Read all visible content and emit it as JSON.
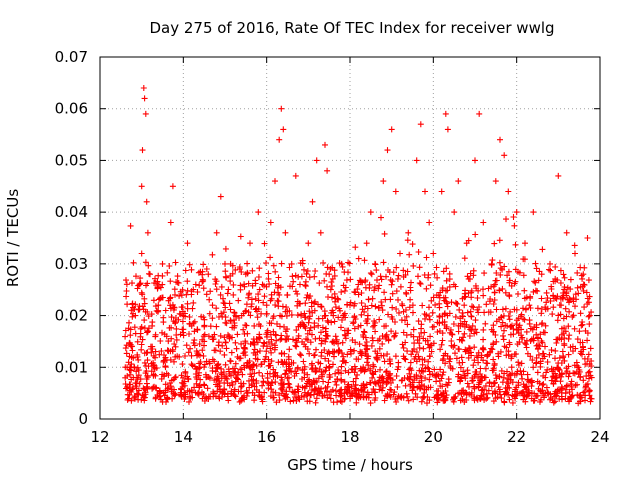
{
  "chart_data": {
    "type": "scatter",
    "title": "Day 275 of 2016, Rate Of TEC Index for receiver wwlg",
    "xlabel": "GPS time / hours",
    "ylabel": "ROTI / TECUs",
    "xlim": [
      12,
      24
    ],
    "ylim": [
      0,
      0.07
    ],
    "x_ticks": [
      12,
      14,
      16,
      18,
      20,
      22,
      24
    ],
    "x_tick_labels": [
      "12",
      "14",
      "16",
      "18",
      "20",
      "22",
      "24"
    ],
    "y_ticks": [
      0,
      0.01,
      0.02,
      0.03,
      0.04,
      0.05,
      0.06,
      0.07
    ],
    "y_tick_labels": [
      "0",
      "0.01",
      "0.02",
      "0.03",
      "0.04",
      "0.05",
      "0.06",
      "0.07"
    ],
    "grid": true,
    "marker": "+",
    "series_color": "#ff0000",
    "series": [
      {
        "name": "ROTI",
        "points": [
          [
            12.65,
            0.01
          ],
          [
            12.7,
            0.006
          ],
          [
            12.75,
            0.014
          ],
          [
            12.8,
            0.008
          ],
          [
            12.85,
            0.02
          ],
          [
            12.9,
            0.012
          ],
          [
            12.95,
            0.026
          ],
          [
            13.0,
            0.032
          ],
          [
            13.0,
            0.045
          ],
          [
            13.02,
            0.052
          ],
          [
            13.05,
            0.064
          ],
          [
            13.07,
            0.062
          ],
          [
            13.1,
            0.059
          ],
          [
            13.12,
            0.042
          ],
          [
            13.15,
            0.036
          ],
          [
            13.2,
            0.028
          ],
          [
            13.25,
            0.018
          ],
          [
            13.3,
            0.01
          ],
          [
            13.4,
            0.022
          ],
          [
            13.5,
            0.03
          ],
          [
            13.6,
            0.016
          ],
          [
            13.7,
            0.038
          ],
          [
            13.75,
            0.045
          ],
          [
            13.8,
            0.024
          ],
          [
            13.9,
            0.012
          ],
          [
            14.0,
            0.02
          ],
          [
            14.1,
            0.034
          ],
          [
            14.2,
            0.018
          ],
          [
            14.3,
            0.026
          ],
          [
            14.4,
            0.01
          ],
          [
            14.5,
            0.015
          ],
          [
            14.6,
            0.028
          ],
          [
            14.7,
            0.022
          ],
          [
            14.8,
            0.036
          ],
          [
            14.9,
            0.043
          ],
          [
            15.0,
            0.03
          ],
          [
            15.1,
            0.016
          ],
          [
            15.2,
            0.024
          ],
          [
            15.3,
            0.012
          ],
          [
            15.4,
            0.02
          ],
          [
            15.5,
            0.028
          ],
          [
            15.6,
            0.034
          ],
          [
            15.7,
            0.018
          ],
          [
            15.8,
            0.04
          ],
          [
            15.9,
            0.026
          ],
          [
            16.0,
            0.022
          ],
          [
            16.1,
            0.038
          ],
          [
            16.2,
            0.046
          ],
          [
            16.3,
            0.054
          ],
          [
            16.35,
            0.06
          ],
          [
            16.4,
            0.056
          ],
          [
            16.45,
            0.036
          ],
          [
            16.5,
            0.024
          ],
          [
            16.6,
            0.03
          ],
          [
            16.7,
            0.047
          ],
          [
            16.8,
            0.026
          ],
          [
            16.9,
            0.018
          ],
          [
            17.0,
            0.034
          ],
          [
            17.1,
            0.042
          ],
          [
            17.2,
            0.05
          ],
          [
            17.3,
            0.036
          ],
          [
            17.4,
            0.053
          ],
          [
            17.45,
            0.048
          ],
          [
            17.5,
            0.028
          ],
          [
            17.6,
            0.02
          ],
          [
            17.8,
            0.03
          ],
          [
            18.0,
            0.022
          ],
          [
            18.2,
            0.026
          ],
          [
            18.4,
            0.034
          ],
          [
            18.5,
            0.04
          ],
          [
            18.6,
            0.03
          ],
          [
            18.8,
            0.046
          ],
          [
            18.9,
            0.052
          ],
          [
            19.0,
            0.056
          ],
          [
            19.1,
            0.044
          ],
          [
            19.2,
            0.032
          ],
          [
            19.4,
            0.036
          ],
          [
            19.6,
            0.05
          ],
          [
            19.7,
            0.057
          ],
          [
            19.8,
            0.044
          ],
          [
            19.9,
            0.038
          ],
          [
            20.0,
            0.032
          ],
          [
            20.2,
            0.044
          ],
          [
            20.3,
            0.059
          ],
          [
            20.35,
            0.056
          ],
          [
            20.5,
            0.04
          ],
          [
            20.6,
            0.046
          ],
          [
            20.8,
            0.034
          ],
          [
            21.0,
            0.05
          ],
          [
            21.1,
            0.059
          ],
          [
            21.2,
            0.038
          ],
          [
            21.4,
            0.03
          ],
          [
            21.5,
            0.046
          ],
          [
            21.6,
            0.054
          ],
          [
            21.7,
            0.051
          ],
          [
            21.8,
            0.044
          ],
          [
            22.0,
            0.04
          ],
          [
            22.2,
            0.034
          ],
          [
            22.4,
            0.04
          ],
          [
            22.6,
            0.028
          ],
          [
            22.8,
            0.03
          ],
          [
            23.0,
            0.047
          ],
          [
            23.2,
            0.036
          ],
          [
            23.4,
            0.032
          ],
          [
            23.6,
            0.028
          ],
          [
            23.7,
            0.035
          ],
          [
            23.75,
            0.02
          ],
          [
            23.8,
            0.008
          ]
        ],
        "dense_band": {
          "x_range": [
            12.6,
            23.8
          ],
          "y_range": [
            0.002,
            0.03
          ],
          "note": "dense cluster of several thousand + markers, concentrated between 0.005 and 0.02 TECUs"
        }
      }
    ]
  }
}
